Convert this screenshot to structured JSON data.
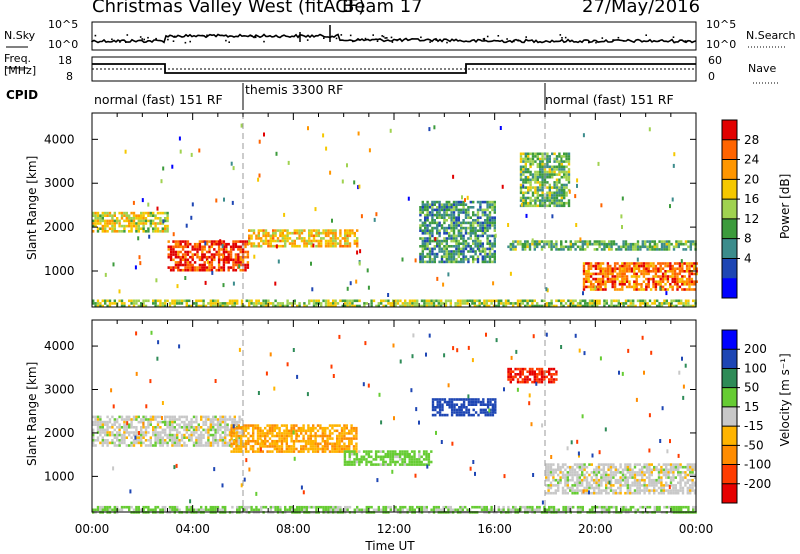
{
  "header": {
    "title": "Christmas Valley West (fitACF)",
    "beam": "Beam 17",
    "date": "27/May/2016"
  },
  "panels": {
    "nsky": {
      "label": "N.Sky",
      "ticks": [
        "10^5",
        "10^0"
      ],
      "right_label": "N.Search",
      "right_ticks": [
        "10^5",
        "10^0"
      ]
    },
    "freq": {
      "label_line1": "Freq.",
      "label_line2": "[MHz]",
      "ticks": [
        "18",
        "8"
      ],
      "right_label": "Nave",
      "right_ticks": [
        "60",
        "0"
      ]
    },
    "cpid": {
      "label": "CPID",
      "segments": [
        {
          "text": "normal (fast) 151 RF",
          "start_hour": 0
        },
        {
          "text": "themis 3300 RF",
          "start_hour": 6
        },
        {
          "text": "normal (fast) 151 RF",
          "start_hour": 18
        }
      ]
    }
  },
  "axes": {
    "ylabel": "Slant Range [km]",
    "xlabel": "Time UT",
    "x_ticks": [
      "00:00",
      "04:00",
      "08:00",
      "12:00",
      "16:00",
      "20:00",
      "00:00"
    ],
    "y_ticks": [
      "1000",
      "2000",
      "3000",
      "4000"
    ]
  },
  "colorbars": {
    "power": {
      "label": "Power [dB]",
      "ticks": [
        "28",
        "24",
        "20",
        "16",
        "12",
        "8",
        "4"
      ],
      "colors": [
        "#e10000",
        "#ff6400",
        "#ff9600",
        "#f5c800",
        "#a0d250",
        "#3c9b3c",
        "#3c8c8c",
        "#1e46b4",
        "#0000ff"
      ]
    },
    "velocity": {
      "label": "Velocity [m s⁻¹]",
      "ticks": [
        "200",
        "100",
        "50",
        "15",
        "-15",
        "-50",
        "-100",
        "-200"
      ],
      "colors": [
        "#0000ff",
        "#1e46b4",
        "#2e8b57",
        "#66cc33",
        "#c8c8c8",
        "#ffb400",
        "#ff8c00",
        "#ff3c00",
        "#e60000"
      ]
    }
  },
  "chart_data": [
    {
      "type": "heatmap",
      "title": "Christmas Valley West (fitACF) Beam 17 27/May/2016",
      "xlabel": "Time UT",
      "ylabel": "Slant Range [km]",
      "xlim_hours": [
        0,
        24
      ],
      "ylim_km": [
        180,
        4600
      ],
      "colorbar": "Power [dB]",
      "colorbar_range": [
        0,
        30
      ],
      "regions": [
        {
          "t0": 0,
          "t1": 3,
          "r0": 1900,
          "r1": 2350,
          "level": 17
        },
        {
          "t0": 3,
          "t1": 6.2,
          "r0": 1000,
          "r1": 1700,
          "level": 27
        },
        {
          "t0": 6.2,
          "t1": 10.5,
          "r0": 1550,
          "r1": 1950,
          "level": 19
        },
        {
          "t0": 0,
          "t1": 24,
          "r0": 200,
          "r1": 350,
          "level": 15
        },
        {
          "t0": 16.5,
          "t1": 24,
          "r0": 1500,
          "r1": 1700,
          "level": 12
        },
        {
          "t0": 19.5,
          "t1": 24,
          "r0": 600,
          "r1": 1200,
          "level": 24
        },
        {
          "t0": 13,
          "t1": 16,
          "r0": 1200,
          "r1": 2600,
          "level": 10
        },
        {
          "t0": 17,
          "t1": 19,
          "r0": 2500,
          "r1": 3700,
          "level": 13
        }
      ]
    },
    {
      "type": "heatmap",
      "xlabel": "Time UT",
      "ylabel": "Slant Range [km]",
      "xlim_hours": [
        0,
        24
      ],
      "ylim_km": [
        180,
        4600
      ],
      "colorbar": "Velocity [m s⁻¹]",
      "colorbar_range": [
        -200,
        200
      ],
      "regions": [
        {
          "t0": 0,
          "t1": 6,
          "r0": 1700,
          "r1": 2400,
          "level": 0
        },
        {
          "t0": 5.5,
          "t1": 10.5,
          "r0": 1600,
          "r1": 2200,
          "level": -45
        },
        {
          "t0": 10,
          "t1": 13.5,
          "r0": 1300,
          "r1": 1600,
          "level": 30
        },
        {
          "t0": 16.5,
          "t1": 18.5,
          "r0": 3200,
          "r1": 3500,
          "level": -200
        },
        {
          "t0": 13.5,
          "t1": 16,
          "r0": 2400,
          "r1": 2800,
          "level": 180
        },
        {
          "t0": 18,
          "t1": 24,
          "r0": 600,
          "r1": 1300,
          "level": 0
        },
        {
          "t0": 0,
          "t1": 24,
          "r0": 200,
          "r1": 320,
          "level": 20
        }
      ]
    }
  ]
}
